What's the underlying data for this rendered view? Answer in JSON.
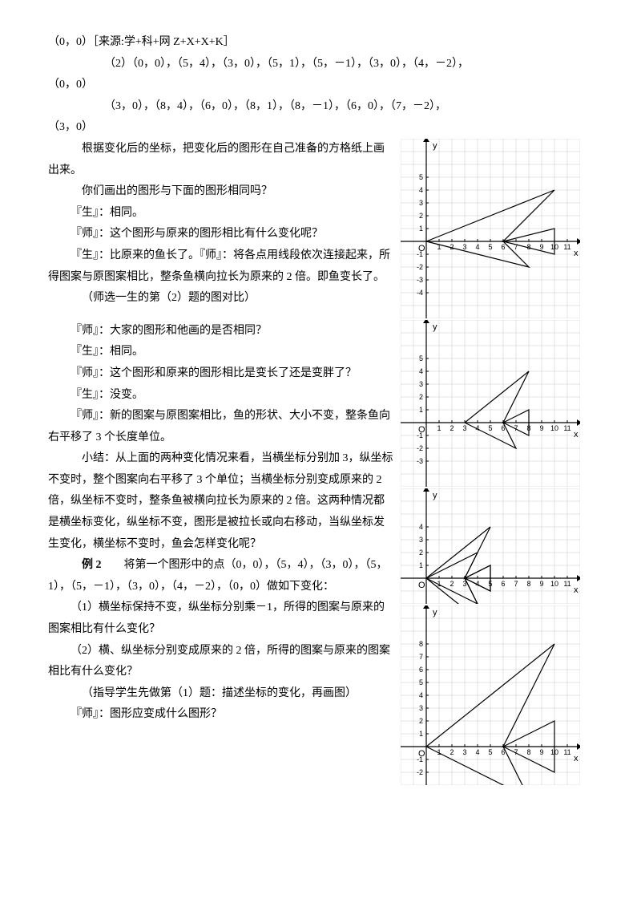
{
  "p": {
    "l1": "（0，0）［来源:学+科+网 Z+X+X+K］",
    "l2": "（2）（0，0），（5，4），（3，0），（5，1），（5，－1），（3，0），（4，－2），",
    "l3": "（0，0）",
    "l4": "（3，0），（8，4），（6，0），（8，1），（8，－1），（6，0），（7，－2），",
    "l5": "（3，0）",
    "l6": "根据变化后的坐标，把变化后的图形在自己准备的方格纸上画出来。",
    "l7": "你们画出的图形与下面的图形相同吗？",
    "l8": "『生』：相同。",
    "l9": "『师』：这个图形与原来的图形相比有什么变化呢？",
    "l10": "『生』：比原来的鱼长了。『师』：将各点用线段依次连接起来，所得图案与原图案相比，整条鱼横向拉长为原来的 2 倍。即鱼变长了。",
    "l11": "（师选一生的第（2）题的图对比）",
    "l12": "『师』：大家的图形和他画的是否相同？",
    "l13": "『生』：相同。",
    "l14": "『师』：这个图形和原来的图形相比是变长了还是变胖了？",
    "l15": "『生』：没变。",
    "l16": "『师』：新的图案与原图案相比，鱼的形状、大小不变，整条鱼向右平移了 3 个长度单位。",
    "l17": "小结：从上面的两种变化情况来看，当横坐标分别加 3，纵坐标不变时，整个图案向右平移了 3 个单位；当横坐标分别变成原来的 2 倍，纵坐标不变时，整条鱼被横向拉长为原来的 2 倍。这两种情况都是横坐标变化，纵坐标不变，图形是被拉长或向右移动，当纵坐标发生变化，横坐标不变时，鱼会怎样变化呢？",
    "l18a": "例 2",
    "l18b": "　　将第一个图形中的点（0，0），（5，4），（3，0），（5，1），（5，－1），（3，0），（4，－2），（0，0）做如下变化：",
    "l19": "（1）横坐标保持不变，纵坐标分别乘－1，所得的图案与原来的图案相比有什么变化？",
    "l20": "（2）横、纵坐标分别变成原来的 2 倍，所得的图案与原来的图案相比有什么变化？",
    "l21": "（指导学生先做第（1）题：描述坐标的变化，再画图）",
    "l22": "『师』：图形应变成什么图形？"
  },
  "charts": {
    "grid_color": "#c8c8c8",
    "axis_color": "#000000",
    "cell": 16,
    "c1": {
      "cols": 14,
      "rows": 14,
      "origin_col": 2,
      "origin_row": 8,
      "x_ticks": [
        1,
        2,
        3,
        4,
        5,
        6,
        7,
        8,
        9,
        10,
        11
      ],
      "y_ticks_pos": [
        1,
        2,
        3,
        4,
        5
      ],
      "y_ticks_neg": [
        -1,
        -2,
        -3,
        -4
      ],
      "fish": [
        [
          0,
          0
        ],
        [
          10,
          4
        ],
        [
          6,
          0
        ],
        [
          10,
          1
        ],
        [
          10,
          -1
        ],
        [
          6,
          0
        ],
        [
          8,
          -2
        ],
        [
          0,
          0
        ]
      ]
    },
    "c2": {
      "cols": 14,
      "rows": 13,
      "origin_col": 2,
      "origin_row": 8,
      "x_ticks": [
        1,
        2,
        3,
        4,
        5,
        6,
        7,
        8,
        9,
        10,
        11
      ],
      "y_ticks_pos": [
        1,
        2,
        3,
        4,
        5
      ],
      "y_ticks_neg": [
        -1,
        -2,
        -3
      ],
      "fish": [
        [
          3,
          0
        ],
        [
          8,
          4
        ],
        [
          6,
          0
        ],
        [
          8,
          1
        ],
        [
          8,
          -1
        ],
        [
          6,
          0
        ],
        [
          7,
          -2
        ],
        [
          3,
          0
        ]
      ]
    },
    "c3": {
      "cols": 14,
      "rows": 9,
      "origin_col": 2,
      "origin_row": 7,
      "x_ticks": [
        1,
        2,
        3,
        4,
        5,
        6,
        7,
        8,
        9,
        10,
        11
      ],
      "y_ticks_pos": [
        1,
        2,
        3,
        4
      ],
      "y_ticks_neg": [],
      "fish": [
        [
          0,
          0
        ],
        [
          5,
          4
        ],
        [
          3,
          0
        ],
        [
          5,
          1
        ],
        [
          5,
          -1
        ],
        [
          3,
          0
        ],
        [
          4,
          -2
        ],
        [
          0,
          0
        ]
      ],
      "fish2": [
        [
          0,
          0
        ],
        [
          5,
          -4
        ],
        [
          3,
          0
        ],
        [
          5,
          -1
        ],
        [
          5,
          1
        ],
        [
          3,
          0
        ],
        [
          4,
          2
        ],
        [
          0,
          0
        ]
      ],
      "clip_bottom": true
    },
    "c4": {
      "cols": 14,
      "rows": 14,
      "origin_col": 2,
      "origin_row": 11,
      "x_ticks": [
        1,
        2,
        3,
        4,
        5,
        6,
        7,
        8,
        9,
        10,
        11
      ],
      "y_ticks_pos": [
        1,
        2,
        3,
        4,
        5,
        6,
        7,
        8
      ],
      "y_ticks_neg": [
        -1,
        -2
      ],
      "fish": [
        [
          0,
          0
        ],
        [
          10,
          8
        ],
        [
          6,
          0
        ],
        [
          10,
          2
        ],
        [
          10,
          -2
        ],
        [
          6,
          0
        ],
        [
          8,
          -4
        ],
        [
          0,
          0
        ]
      ],
      "clip_bottom": true
    }
  },
  "labels": {
    "x": "x",
    "y": "y",
    "origin": "O"
  }
}
